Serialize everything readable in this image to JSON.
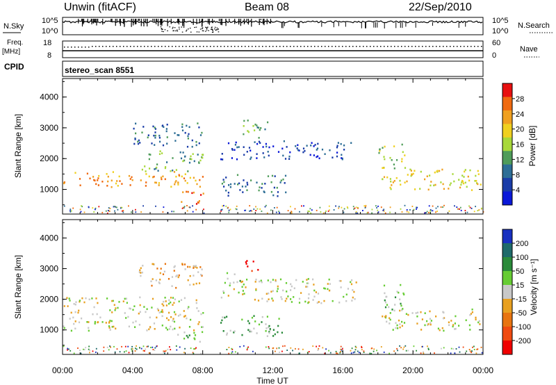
{
  "header": {
    "station": "Unwin (fitACF)",
    "beam": "Beam 08",
    "date": "22/Sep/2010"
  },
  "side_labels": {
    "nsky": "N.Sky",
    "nsearch": "N.Search",
    "freq_line1": "Freq.",
    "freq_line2": "[MHz]",
    "nave": "Nave",
    "cpid": "CPID",
    "cpid_value": "stereo_scan 8551"
  },
  "noise_panel": {
    "ticks_left": [
      "10^5",
      "10^0"
    ],
    "ticks_right": [
      "10^5",
      "10^0"
    ]
  },
  "freq_panel": {
    "ticks_left": [
      "18",
      "8"
    ],
    "ticks_right": [
      "60",
      "0"
    ]
  },
  "colors": {
    "power": [
      "#0a18d8",
      "#1a3ca8",
      "#2d6e96",
      "#4f9c5a",
      "#a8d83a",
      "#f0d020",
      "#f0a020",
      "#f06a10",
      "#e81010"
    ],
    "velocity": [
      "#1830c0",
      "#1e6a6a",
      "#2a8a3a",
      "#66cc33",
      "#c8c8c8",
      "#e8a020",
      "#e87410",
      "#f04a10",
      "#f00000"
    ],
    "scatter_gray": "#c8c8c8"
  },
  "chart_data": [
    {
      "type": "heatmap",
      "name": "Power",
      "xlabel": "",
      "ylabel": "Slant Range [km]",
      "ylim": [
        200,
        4600
      ],
      "y_ticks": [
        "4000",
        "3000",
        "2000",
        "1000"
      ],
      "x_ticks": [
        "00:00",
        "04:00",
        "08:00",
        "12:00",
        "16:00",
        "20:00",
        "00:00"
      ],
      "colorbar": {
        "label": "Power [dB]",
        "ticks": [
          "28",
          "24",
          "20",
          "16",
          "12",
          "8",
          "4"
        ]
      },
      "bands": [
        {
          "t0": 0.0,
          "t1": 8.0,
          "r0": 1100,
          "r1": 1600,
          "level": 6
        },
        {
          "t0": 4.5,
          "t1": 8.0,
          "r0": 1600,
          "r1": 2300,
          "level": 3
        },
        {
          "t0": 4.0,
          "t1": 8.0,
          "r0": 2400,
          "r1": 3200,
          "level": 2
        },
        {
          "t0": 6.5,
          "t1": 8.0,
          "r0": 550,
          "r1": 1000,
          "level": 7
        },
        {
          "t0": 9.0,
          "t1": 16.5,
          "r0": 2000,
          "r1": 2600,
          "level": 1
        },
        {
          "t0": 9.0,
          "t1": 12.8,
          "r0": 800,
          "r1": 1500,
          "level": 2
        },
        {
          "t0": 10.2,
          "t1": 11.8,
          "r0": 2700,
          "r1": 3300,
          "level": 3
        },
        {
          "t0": 18.2,
          "t1": 24.0,
          "r0": 1000,
          "r1": 1700,
          "level": 5
        },
        {
          "t0": 18.0,
          "t1": 19.6,
          "r0": 1700,
          "r1": 2500,
          "level": 4
        }
      ]
    },
    {
      "type": "heatmap",
      "name": "Velocity",
      "xlabel": "Time UT",
      "ylabel": "Slant Range [km]",
      "ylim": [
        200,
        4600
      ],
      "y_ticks": [
        "4000",
        "3000",
        "2000",
        "1000"
      ],
      "x_ticks": [
        "00:00",
        "04:00",
        "08:00",
        "12:00",
        "16:00",
        "20:00",
        "00:00"
      ],
      "colorbar": {
        "label": "Velocity [m s⁻¹]",
        "ticks": [
          "200",
          "100",
          "50",
          "15",
          "-15",
          "-50",
          "-100",
          "-200"
        ]
      },
      "bands": [
        {
          "t0": 0.0,
          "t1": 8.0,
          "r0": 1000,
          "r1": 2100,
          "level": 4
        },
        {
          "t0": 4.0,
          "t1": 8.0,
          "r0": 2400,
          "r1": 3200,
          "level": 5
        },
        {
          "t0": 6.5,
          "t1": 8.0,
          "r0": 550,
          "r1": 1000,
          "level": 3
        },
        {
          "t0": 9.0,
          "t1": 16.8,
          "r0": 1900,
          "r1": 2700,
          "level": 4
        },
        {
          "t0": 9.0,
          "t1": 12.5,
          "r0": 800,
          "r1": 1500,
          "level": 3
        },
        {
          "t0": 10.2,
          "t1": 11.2,
          "r0": 2900,
          "r1": 3300,
          "level": 8
        },
        {
          "t0": 9.2,
          "t1": 10.2,
          "r0": 2500,
          "r1": 2900,
          "level": 3
        },
        {
          "t0": 18.2,
          "t1": 24.0,
          "r0": 1000,
          "r1": 1700,
          "level": 4
        },
        {
          "t0": 18.2,
          "t1": 19.5,
          "r0": 1600,
          "r1": 2500,
          "level": 3
        }
      ]
    }
  ]
}
